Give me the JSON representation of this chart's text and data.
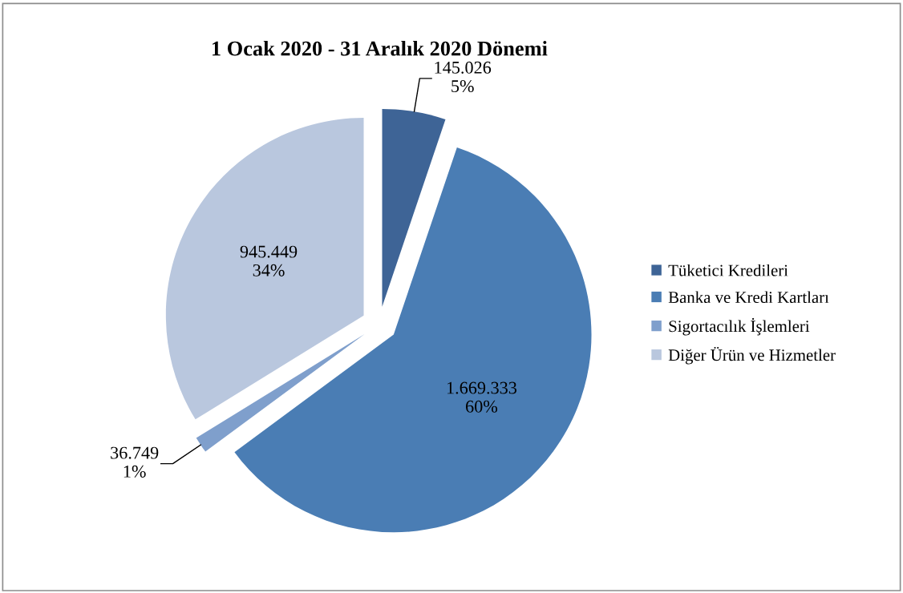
{
  "chart_data": {
    "type": "pie",
    "title": "1 Ocak 2020 - 31 Aralık 2020 Dönemi",
    "categories": [
      "Tüketici Kredileri",
      "Banka ve Kredi Kartları",
      "Sigortacılık İşlemleri",
      "Diğer Ürün ve Hizmetler"
    ],
    "values": [
      145026,
      1669333,
      36749,
      945449
    ],
    "colors": [
      "#3e6496",
      "#4a7db4",
      "#7f9fcc",
      "#b9c7de"
    ],
    "value_labels": [
      "145.026\n5%",
      "1.669.333\n60%",
      "36.749\n1%",
      "945.449\n34%"
    ],
    "legend": "right"
  }
}
